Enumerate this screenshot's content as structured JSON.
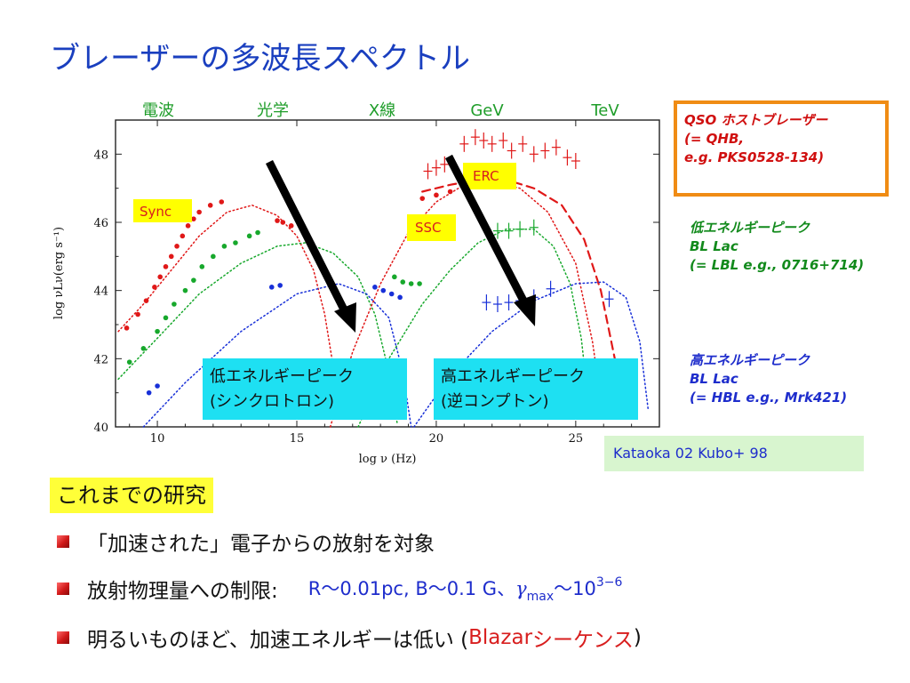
{
  "slide": {
    "title": "ブレーザーの多波長スペクトル"
  },
  "band_labels": [
    "電波",
    "光学",
    "X線",
    "GeV",
    "TeV"
  ],
  "qso_box": {
    "lines": [
      "QSO ホストブレーザー",
      "(= QHB,",
      "e.g. PKS0528-134)"
    ]
  },
  "low_peak_label": {
    "lines": [
      "低エネルギーピーク",
      "BL Lac",
      "(= LBL e.g., 0716+714)"
    ]
  },
  "high_peak_label": {
    "lines": [
      "高エネルギーピーク",
      "BL Lac",
      "(= HBL e.g., Mrk421)"
    ]
  },
  "reference": "Kataoka 02 Kubo+ 98",
  "research": {
    "heading": "これまでの研究",
    "bullet1": "「加速された」電子からの放射を対象",
    "bullet2_text": "放射物理量への制限:",
    "bullet2_params": "R〜0.01pc, B〜0.1 G、",
    "bullet2_gamma": "γ",
    "bullet2_sub": "max",
    "bullet2_tilde": "〜10",
    "bullet2_sup": "3−6",
    "bullet3_text": "明るいものほど、加速エネルギーは低い (",
    "bullet3_red1": "Blazar",
    "bullet3_red2": "シーケンス",
    "bullet3_close": ")"
  },
  "colors": {
    "red": "#e01818",
    "green": "#17a82c",
    "blue": "#1830d8",
    "cyan": "#1ee0f2",
    "yellow": "#ffff00"
  },
  "chart_data": {
    "type": "scatter",
    "xlabel": "log ν (Hz)",
    "ylabel": "log νLν(erg s⁻¹)",
    "xlim": [
      8.5,
      28
    ],
    "ylim": [
      40,
      49
    ],
    "xticks": [
      10,
      15,
      20,
      25
    ],
    "yticks": [
      40,
      42,
      44,
      46,
      48
    ],
    "tags": {
      "sync": "Sync",
      "ssc": "SSC",
      "erc": "ERC"
    },
    "annotations": {
      "low": [
        "低エネルギーピーク",
        "(シンクロトロン)"
      ],
      "high": [
        "高エネルギーピーク",
        "(逆コンプトン)"
      ]
    },
    "series": [
      {
        "color": "red",
        "component": "data",
        "points": [
          [
            8.9,
            42.9
          ],
          [
            9.3,
            43.3
          ],
          [
            9.6,
            43.7
          ],
          [
            9.9,
            44.1
          ],
          [
            10.1,
            44.4
          ],
          [
            10.3,
            44.7
          ],
          [
            10.5,
            45.0
          ],
          [
            10.7,
            45.3
          ],
          [
            10.9,
            45.6
          ],
          [
            11.1,
            45.9
          ],
          [
            11.3,
            46.1
          ],
          [
            11.5,
            46.3
          ],
          [
            11.9,
            46.5
          ],
          [
            12.3,
            46.6
          ],
          [
            14.3,
            46.05
          ],
          [
            14.5,
            46.0
          ],
          [
            14.8,
            45.9
          ],
          [
            19.5,
            46.7
          ],
          [
            20.0,
            46.8
          ],
          [
            20.5,
            46.9
          ]
        ]
      },
      {
        "color": "red",
        "component": "data-errorbars",
        "points": [
          [
            19.7,
            47.5
          ],
          [
            20.0,
            47.6
          ],
          [
            20.3,
            47.7
          ],
          [
            21.0,
            48.3
          ],
          [
            21.4,
            48.5
          ],
          [
            21.7,
            48.4
          ],
          [
            22.0,
            48.3
          ],
          [
            22.4,
            48.4
          ],
          [
            22.7,
            48.1
          ],
          [
            23.1,
            48.3
          ],
          [
            23.5,
            48.0
          ],
          [
            23.9,
            48.1
          ],
          [
            24.3,
            48.2
          ],
          [
            24.7,
            47.9
          ],
          [
            25.0,
            47.8
          ]
        ]
      },
      {
        "color": "green",
        "component": "data",
        "points": [
          [
            9.0,
            41.9
          ],
          [
            9.5,
            42.3
          ],
          [
            10.0,
            42.8
          ],
          [
            10.3,
            43.2
          ],
          [
            10.6,
            43.6
          ],
          [
            11.0,
            44.0
          ],
          [
            11.3,
            44.3
          ],
          [
            11.6,
            44.7
          ],
          [
            12.0,
            45.0
          ],
          [
            12.4,
            45.3
          ],
          [
            12.8,
            45.4
          ],
          [
            13.3,
            45.6
          ],
          [
            13.6,
            45.7
          ],
          [
            18.5,
            44.4
          ],
          [
            18.8,
            44.25
          ],
          [
            19.1,
            44.2
          ],
          [
            19.4,
            44.2
          ]
        ]
      },
      {
        "color": "green",
        "component": "data-errorbars",
        "points": [
          [
            22.2,
            45.75
          ],
          [
            22.6,
            45.75
          ],
          [
            23.0,
            45.8
          ],
          [
            23.5,
            45.85
          ]
        ]
      },
      {
        "color": "blue",
        "component": "data",
        "points": [
          [
            9.7,
            41.0
          ],
          [
            10.0,
            41.2
          ],
          [
            14.1,
            44.1
          ],
          [
            14.4,
            44.15
          ],
          [
            17.8,
            44.1
          ],
          [
            18.1,
            44.0
          ],
          [
            18.4,
            43.9
          ],
          [
            18.7,
            43.8
          ]
        ]
      },
      {
        "color": "blue",
        "component": "data-errorbars",
        "points": [
          [
            21.8,
            43.65
          ],
          [
            22.2,
            43.6
          ],
          [
            22.6,
            43.65
          ],
          [
            23.0,
            43.7
          ],
          [
            23.5,
            43.8
          ],
          [
            24.1,
            44.05
          ],
          [
            26.2,
            43.75
          ]
        ]
      },
      {
        "color": "red",
        "component": "model-sync",
        "points": [
          [
            8.6,
            42.8
          ],
          [
            9.5,
            43.6
          ],
          [
            10.5,
            44.6
          ],
          [
            11.5,
            45.6
          ],
          [
            12.5,
            46.3
          ],
          [
            13.4,
            46.5
          ],
          [
            14.3,
            46.2
          ],
          [
            15.0,
            45.6
          ],
          [
            15.6,
            44.6
          ],
          [
            16.0,
            43.3
          ],
          [
            16.3,
            41.8
          ],
          [
            16.5,
            40.4
          ]
        ]
      },
      {
        "color": "green",
        "component": "model-sync",
        "points": [
          [
            8.6,
            41.4
          ],
          [
            10.0,
            42.6
          ],
          [
            11.5,
            43.9
          ],
          [
            13.0,
            44.8
          ],
          [
            14.3,
            45.3
          ],
          [
            15.3,
            45.4
          ],
          [
            16.3,
            45.1
          ],
          [
            17.2,
            44.4
          ],
          [
            17.8,
            43.3
          ],
          [
            18.3,
            41.6
          ],
          [
            18.6,
            40.1
          ]
        ]
      },
      {
        "color": "blue",
        "component": "model-sync",
        "points": [
          [
            9.5,
            40.0
          ],
          [
            11.0,
            41.3
          ],
          [
            13.0,
            42.8
          ],
          [
            15.0,
            43.9
          ],
          [
            16.5,
            44.2
          ],
          [
            17.5,
            43.9
          ],
          [
            18.3,
            43.2
          ],
          [
            18.8,
            41.6
          ],
          [
            19.1,
            40.0
          ]
        ]
      },
      {
        "color": "red",
        "component": "model-ssc",
        "points": [
          [
            16.2,
            40.0
          ],
          [
            17.0,
            42.2
          ],
          [
            18.0,
            44.2
          ],
          [
            19.0,
            45.7
          ],
          [
            20.0,
            46.6
          ],
          [
            21.0,
            47.1
          ],
          [
            22.0,
            47.2
          ],
          [
            23.0,
            47.0
          ],
          [
            24.0,
            46.3
          ],
          [
            25.0,
            44.8
          ],
          [
            25.6,
            42.5
          ],
          [
            26.0,
            40.2
          ]
        ]
      },
      {
        "color": "red",
        "component": "model-erc",
        "points": [
          [
            19.5,
            46.9
          ],
          [
            20.5,
            47.1
          ],
          [
            21.5,
            47.25
          ],
          [
            22.5,
            47.25
          ],
          [
            23.5,
            47.0
          ],
          [
            24.5,
            46.5
          ],
          [
            25.3,
            45.5
          ],
          [
            25.9,
            44.0
          ],
          [
            26.4,
            42.0
          ],
          [
            26.7,
            40.5
          ]
        ]
      },
      {
        "color": "green",
        "component": "model-ssc",
        "points": [
          [
            17.2,
            40.0
          ],
          [
            18.3,
            42.0
          ],
          [
            19.5,
            43.6
          ],
          [
            20.5,
            44.6
          ],
          [
            21.5,
            45.4
          ],
          [
            22.5,
            45.8
          ],
          [
            23.5,
            45.8
          ],
          [
            24.2,
            45.3
          ],
          [
            24.8,
            44.2
          ],
          [
            25.2,
            42.6
          ],
          [
            25.5,
            40.4
          ]
        ]
      },
      {
        "color": "blue",
        "component": "model-ssc",
        "points": [
          [
            19.2,
            40.0
          ],
          [
            20.5,
            41.5
          ],
          [
            22.0,
            42.8
          ],
          [
            23.5,
            43.7
          ],
          [
            25.0,
            44.2
          ],
          [
            26.0,
            44.25
          ],
          [
            26.8,
            43.8
          ],
          [
            27.3,
            42.5
          ],
          [
            27.6,
            40.5
          ]
        ]
      }
    ]
  }
}
